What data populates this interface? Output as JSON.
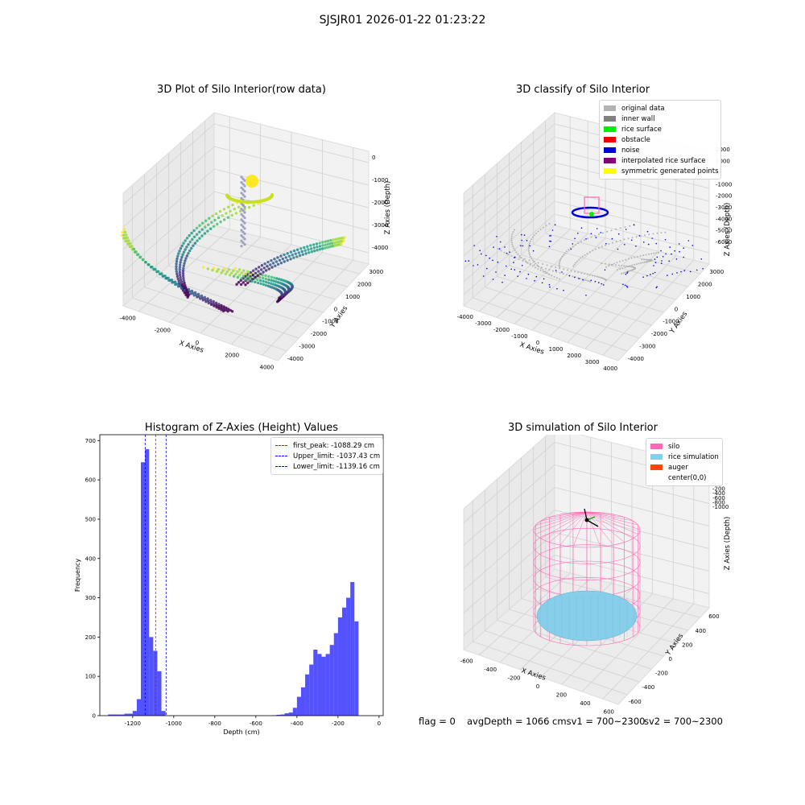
{
  "suptitle": "SJSJR01 2026-01-22 01:23:22",
  "panels": {
    "raw": {
      "title": "3D Plot of Silo Interior(row data)",
      "xlabel": "X Axies",
      "ylabel": "Y Axies",
      "zlabel": "Z Axies (Depth)",
      "xticks": [
        "-4000",
        "-2000",
        "0",
        "2000",
        "4000"
      ],
      "yticks": [
        "3000",
        "2000",
        "1000",
        "0",
        "-1000",
        "-2000",
        "-3000",
        "-4000"
      ],
      "zticks": [
        "0",
        "-1000",
        "-2000",
        "-3000",
        "-4000"
      ]
    },
    "classify": {
      "title": "3D classify of Silo Interior",
      "xlabel": "X Axies",
      "ylabel": "Y Axies",
      "zlabel": "Z Axies (Depth)",
      "xticks": [
        "-4000",
        "-3000",
        "-2000",
        "-1000",
        "0",
        "1000",
        "2000",
        "3000",
        "4000"
      ],
      "yticks": [
        "3000",
        "2000",
        "1000",
        "0",
        "-1000",
        "-2000",
        "-3000",
        "-4000"
      ],
      "zticks": [
        "2000",
        "1000",
        "0",
        "-1000",
        "-2000",
        "-3000",
        "-4000",
        "-5000",
        "-6000"
      ],
      "legend": [
        {
          "label": "original data",
          "color": "#b3b3b3"
        },
        {
          "label": "inner wall",
          "color": "#808080"
        },
        {
          "label": "rice surface",
          "color": "#00ee00"
        },
        {
          "label": "obstacle",
          "color": "#ee0000"
        },
        {
          "label": "noise",
          "color": "#0000dd"
        },
        {
          "label": "interpolated rice surface",
          "color": "#800080"
        },
        {
          "label": "symmetric generated points",
          "color": "#ffff00"
        }
      ]
    },
    "simulation": {
      "title": "3D simulation of Silo Interior",
      "xlabel": "X Axies",
      "ylabel": "Y Axies",
      "zlabel": "Z Axies (Depth)",
      "xticks": [
        "-600",
        "-400",
        "-200",
        "0",
        "200",
        "400",
        "600"
      ],
      "yticks": [
        "600",
        "400",
        "200",
        "0",
        "-200",
        "-400",
        "-600"
      ],
      "zticks": [
        "0",
        "-200",
        "-400",
        "-600",
        "-800",
        "-1000"
      ],
      "legend": [
        {
          "label": "silo",
          "color": "#ff69b4"
        },
        {
          "label": "rice simulation",
          "color": "#87ceeb"
        },
        {
          "label": "auger",
          "color": "#ff4500"
        },
        {
          "label": "center(0,0)",
          "color": ""
        }
      ]
    },
    "footer": {
      "flag": "flag = 0",
      "avg": "avgDepth = 1066 cmsv1 = 700~2300",
      "sv2": "sv2 = 700~2300"
    }
  },
  "chart_data": [
    {
      "type": "bar",
      "title": "Histogram of Z-Axies (Height) Values",
      "xlabel": "Depth (cm)",
      "ylabel": "Frequency",
      "xlim": [
        -1360,
        20
      ],
      "ylim": [
        0,
        715
      ],
      "xticks": [
        -1200,
        -1000,
        -800,
        -600,
        -400,
        -200,
        0
      ],
      "yticks": [
        0,
        100,
        200,
        300,
        400,
        500,
        600,
        700
      ],
      "bar_color": "#0000ff",
      "bin_width": 20,
      "bins_left": [
        -1320,
        -1300,
        -1280,
        -1260,
        -1240,
        -1220,
        -1200,
        -1180,
        -1160,
        -1140,
        -1120,
        -1100,
        -1080,
        -1060,
        -1040,
        -1020,
        -1000,
        -520,
        -500,
        -480,
        -460,
        -440,
        -420,
        -400,
        -380,
        -360,
        -340,
        -320,
        -300,
        -280,
        -260,
        -240,
        -220,
        -200,
        -180,
        -160,
        -140,
        -120,
        -100,
        -80,
        -60
      ],
      "values": [
        3,
        3,
        3,
        3,
        5,
        5,
        12,
        42,
        645,
        678,
        200,
        165,
        113,
        12,
        0,
        0,
        0,
        1,
        2,
        3,
        6,
        8,
        20,
        48,
        72,
        105,
        130,
        168,
        157,
        150,
        157,
        180,
        210,
        250,
        275,
        300,
        340,
        240,
        0,
        0,
        0
      ],
      "vlines": [
        {
          "label": "first_peak: -1088.29 cm",
          "x": -1088.29,
          "color": "#ff0000"
        },
        {
          "label": "Upper_limit: -1037.43 cm",
          "x": -1037.43,
          "color": "#0000ff"
        },
        {
          "label": "Lower_limit: -1139.16 cm",
          "x": -1139.16,
          "color": "#0000ff"
        }
      ],
      "legend_position": "upper right",
      "grid": false
    }
  ]
}
